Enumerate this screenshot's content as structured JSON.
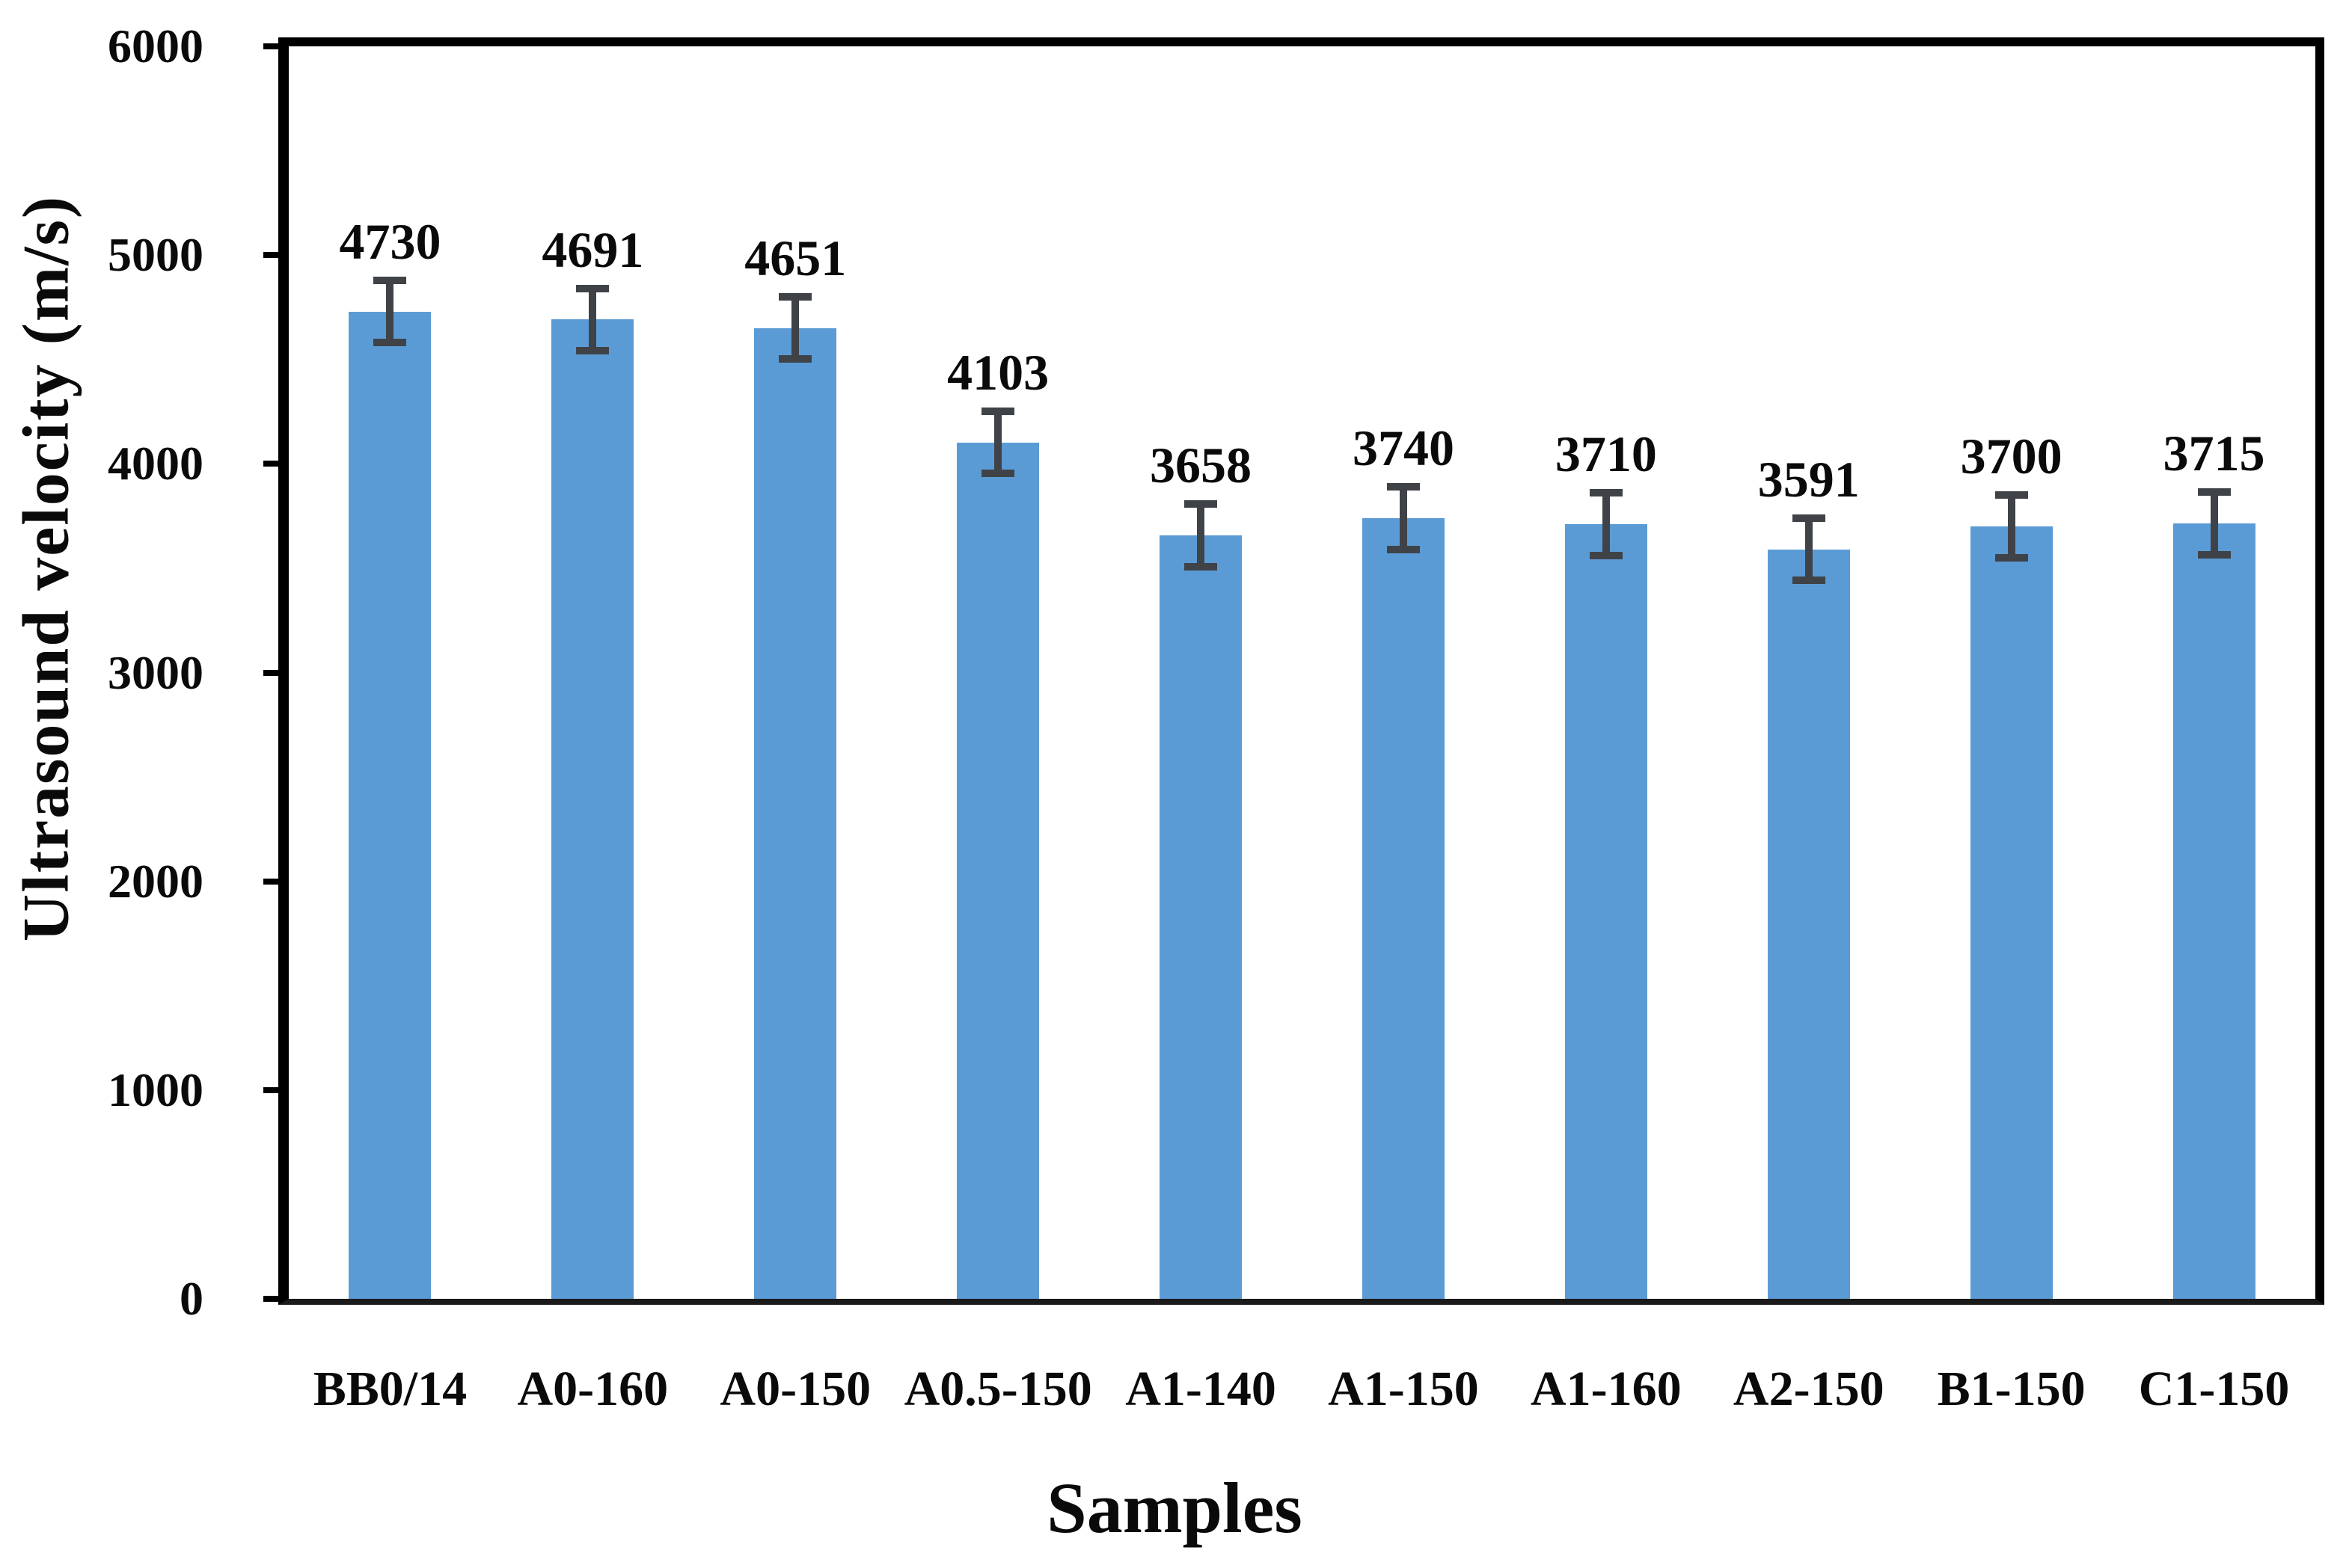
{
  "chart_data": {
    "type": "bar",
    "title": "",
    "xlabel": "Samples",
    "ylabel": "Ultrasound velocity (m/s)",
    "categories": [
      "BB0/14",
      "A0-160",
      "A0-150",
      "A0.5-150",
      "A1-140",
      "A1-150",
      "A1-160",
      "A2-150",
      "B1-150",
      "C1-150"
    ],
    "values": [
      4730,
      4691,
      4651,
      4103,
      3658,
      3740,
      3710,
      3591,
      3700,
      3715
    ],
    "value_labels": [
      "4730",
      "4691",
      "4651",
      "4103",
      "3658",
      "3740",
      "3710",
      "3591",
      "3700",
      "3715"
    ],
    "error_bar": 150,
    "ylim": [
      0,
      6000
    ],
    "ytick_step": 1000,
    "yticks": [
      0,
      1000,
      2000,
      3000,
      4000,
      5000,
      6000
    ],
    "ytick_labels": [
      "0",
      "1000",
      "2000",
      "3000",
      "4000",
      "5000",
      "6000"
    ],
    "grid": false,
    "legend": "none",
    "bar_color": "#5B9BD5",
    "error_color": "#3f4348",
    "axis_color": "#000000",
    "text_color": "#0a0a0a"
  }
}
